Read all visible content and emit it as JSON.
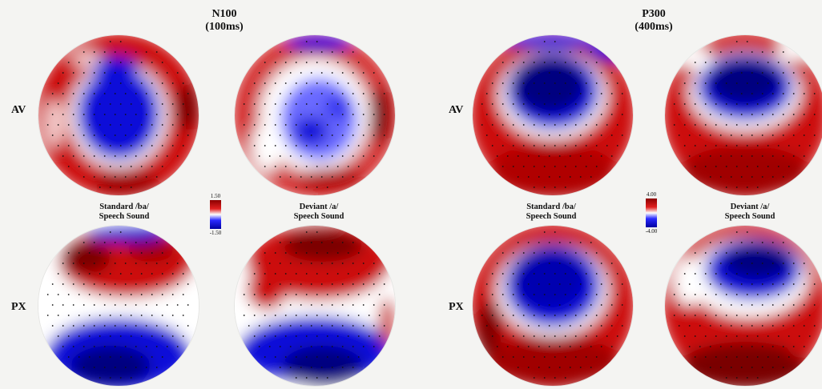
{
  "panels": [
    {
      "component": "N100",
      "window": "(100ms)",
      "scale": {
        "max": "1.50",
        "min": "-1.50"
      }
    },
    {
      "component": "P300",
      "window": "(400ms)",
      "scale": {
        "max": "4.00",
        "min": "-4.00"
      }
    }
  ],
  "rows": [
    "AV",
    "PX"
  ],
  "conditions": [
    {
      "line1": "Standard /ba/",
      "line2": "Speech Sound"
    },
    {
      "line1": "Deviant /a/",
      "line2": "Speech Sound"
    }
  ],
  "colors": {
    "positive": "#cc1111",
    "neutral": "#ffffff",
    "negative": "#0a0ad8"
  }
}
